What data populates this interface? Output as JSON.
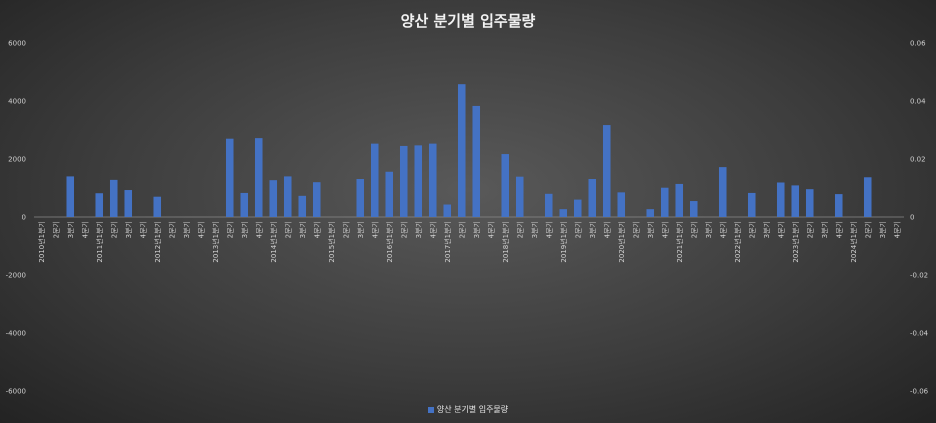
{
  "chart_data": {
    "type": "bar",
    "title": "양산 분기별 입주물량",
    "series": [
      {
        "name": "양산 분기별 입주물량",
        "values": [
          0,
          0,
          1400,
          0,
          820,
          1280,
          930,
          0,
          700,
          0,
          0,
          0,
          0,
          2700,
          830,
          2720,
          1270,
          1400,
          730,
          1200,
          0,
          0,
          1310,
          2530,
          1560,
          2450,
          2470,
          2530,
          430,
          4580,
          3830,
          0,
          2170,
          1390,
          0,
          800,
          270,
          600,
          1310,
          3170,
          850,
          0,
          270,
          1010,
          1140,
          550,
          0,
          1720,
          0,
          830,
          0,
          1190,
          1090,
          960,
          0,
          790,
          0,
          1370,
          0,
          0
        ]
      }
    ],
    "categories": [
      "2010년1분기",
      "2분기",
      "3분기",
      "4분기",
      "2011년1분기",
      "2분기",
      "3분기",
      "4분기",
      "2012년1분기",
      "2분기",
      "3분기",
      "4분기",
      "2013년1분기",
      "2분기",
      "3분기",
      "4분기",
      "2014년1분기",
      "2분기",
      "3분기",
      "4분기",
      "2015년1분기",
      "2분기",
      "3분기",
      "4분기",
      "2016년1분기",
      "2분기",
      "3분기",
      "4분기",
      "2017년1분기",
      "2분기",
      "3분기",
      "4분기",
      "2018년1분기",
      "2분기",
      "3분기",
      "4분기",
      "2019년1분기",
      "2분기",
      "3분기",
      "4분기",
      "2020년1분기",
      "2분기",
      "3분기",
      "4분기",
      "2021년1분기",
      "2분기",
      "3분기",
      "4분기",
      "2022년1분기",
      "2분기",
      "3분기",
      "4분기",
      "2023년1분기",
      "2분기",
      "3분기",
      "4분기",
      "2024년1분기",
      "2분기",
      "3분기",
      "4분기"
    ],
    "ylim": [
      -6000,
      6000
    ],
    "y_ticks": [
      "6000",
      "4000",
      "2000",
      "0",
      "-2000",
      "-4000",
      "-6000"
    ],
    "y2lim": [
      -0.06,
      0.06
    ],
    "y2_ticks": [
      "0.06",
      "0.04",
      "0.02",
      "0",
      "-0.02",
      "-0.04",
      "-0.06"
    ],
    "bar_color": "#4472c4",
    "grid": false,
    "legend_position": "bottom"
  }
}
